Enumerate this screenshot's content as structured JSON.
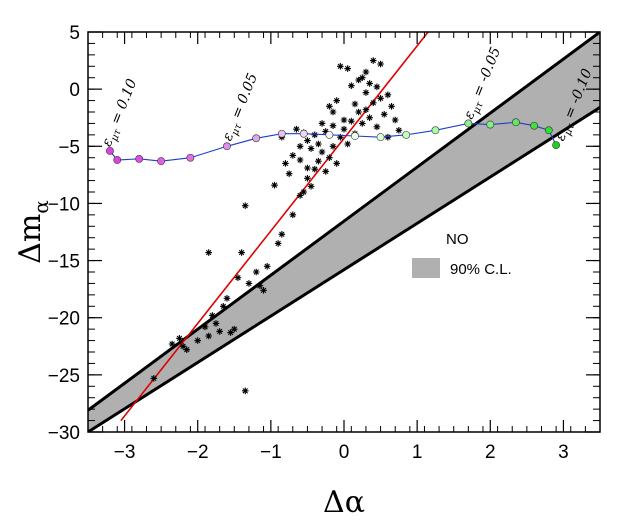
{
  "chart_data": {
    "type": "scatter",
    "xlabel": "Δα",
    "ylabel_main": "Δm",
    "ylabel_sub": "α",
    "xlim": [
      -3.5,
      3.5
    ],
    "ylim": [
      -30,
      5
    ],
    "xticks": [
      -3,
      -2,
      -1,
      0,
      1,
      2,
      3
    ],
    "yticks": [
      5,
      0,
      -5,
      -10,
      -15,
      -20,
      -25,
      -30
    ],
    "xtick_labels": [
      "−3",
      "−2",
      "−1",
      "0",
      "1",
      "2",
      "3"
    ],
    "ytick_labels": [
      "5",
      "0",
      "−5",
      "−10",
      "−15",
      "−20",
      "−25",
      "−30"
    ],
    "band": {
      "name": "90% C.L.",
      "color": "#b0b0b0",
      "lower": [
        [
          -3.5,
          -30
        ],
        [
          3.5,
          -1.6
        ]
      ],
      "upper": [
        [
          -3.5,
          -28.1
        ],
        [
          3.5,
          5
        ]
      ]
    },
    "fit_line": {
      "color": "#e00000",
      "points": [
        [
          -3.05,
          -29
        ],
        [
          1.15,
          5
        ]
      ]
    },
    "scatter_points": [
      [
        -2.6,
        -25.3
      ],
      [
        -2.35,
        -22.3
      ],
      [
        -2.25,
        -21.8
      ],
      [
        -2.2,
        -22.5
      ],
      [
        -2.15,
        -22.8
      ],
      [
        -2.0,
        -22.0
      ],
      [
        -1.9,
        -20.8
      ],
      [
        -1.85,
        -21.6
      ],
      [
        -1.8,
        -19.8
      ],
      [
        -1.75,
        -20.5
      ],
      [
        -1.7,
        -21.2
      ],
      [
        -1.65,
        -19.0
      ],
      [
        -1.6,
        -18.3
      ],
      [
        -1.55,
        -21.3
      ],
      [
        -1.5,
        -21.0
      ],
      [
        -1.45,
        -16.5
      ],
      [
        -1.4,
        -14.3
      ],
      [
        -1.35,
        -26.4
      ],
      [
        -1.3,
        -17.0
      ],
      [
        -1.2,
        -16.0
      ],
      [
        -1.15,
        -17.2
      ],
      [
        -1.1,
        -17.6
      ],
      [
        -1.05,
        -15.5
      ],
      [
        -0.9,
        -13.5
      ],
      [
        -0.85,
        -12.7
      ],
      [
        -1.35,
        -10.2
      ],
      [
        -1.85,
        -14.3
      ],
      [
        -0.7,
        -11.0
      ],
      [
        -0.6,
        -9.3
      ],
      [
        -0.55,
        -9.0
      ],
      [
        -0.5,
        -7.8
      ],
      [
        -0.45,
        -8.5
      ],
      [
        -0.4,
        -7.0
      ],
      [
        -0.35,
        -6.3
      ],
      [
        -0.3,
        -5.5
      ],
      [
        -0.25,
        -7.2
      ],
      [
        -0.2,
        -6.0
      ],
      [
        -0.15,
        -5.0
      ],
      [
        -0.1,
        -6.5
      ],
      [
        -0.05,
        -4.2
      ],
      [
        0.0,
        -3.5
      ],
      [
        0.05,
        -4.8
      ],
      [
        0.1,
        -2.8
      ],
      [
        0.15,
        -3.9
      ],
      [
        0.2,
        -2.0
      ],
      [
        0.25,
        -3.0
      ],
      [
        0.3,
        -1.8
      ],
      [
        0.35,
        -2.5
      ],
      [
        0.4,
        -1.2
      ],
      [
        0.45,
        -3.3
      ],
      [
        0.5,
        -0.8
      ],
      [
        0.55,
        -2.2
      ],
      [
        0.6,
        -4.2
      ],
      [
        0.65,
        -1.5
      ],
      [
        0.7,
        -2.7
      ],
      [
        0.3,
        1.5
      ],
      [
        0.35,
        0.5
      ],
      [
        0.25,
        1.0
      ],
      [
        0.4,
        2.5
      ],
      [
        0.5,
        2.2
      ],
      [
        0.2,
        0.8
      ],
      [
        0.1,
        0.3
      ],
      [
        -0.05,
        2.0
      ],
      [
        0.05,
        1.8
      ],
      [
        -0.1,
        -1.0
      ],
      [
        -0.15,
        -2.0
      ],
      [
        -0.2,
        -1.5
      ],
      [
        -0.3,
        -3.0
      ],
      [
        -0.4,
        -4.0
      ],
      [
        -0.5,
        -4.5
      ],
      [
        -0.6,
        -5.0
      ],
      [
        -0.7,
        -5.8
      ],
      [
        -0.8,
        -6.5
      ],
      [
        -0.65,
        -3.5
      ],
      [
        -0.55,
        -3.8
      ],
      [
        -0.45,
        -5.2
      ],
      [
        -0.35,
        -4.8
      ],
      [
        -0.25,
        -3.7
      ],
      [
        -0.15,
        -3.2
      ],
      [
        0.0,
        -2.7
      ],
      [
        0.15,
        -1.3
      ],
      [
        0.3,
        -0.3
      ],
      [
        0.45,
        0.2
      ],
      [
        0.6,
        -0.5
      ],
      [
        0.75,
        -3.6
      ],
      [
        -0.6,
        -6.2
      ],
      [
        -0.5,
        -6.9
      ],
      [
        -0.75,
        -7.4
      ],
      [
        -0.95,
        -8.4
      ],
      [
        -0.85,
        -4.2
      ]
    ],
    "curve_points": [
      {
        "x": -3.2,
        "y": -5.4,
        "color": "#e040e0"
      },
      {
        "x": -3.1,
        "y": -6.2,
        "color": "#e040e0"
      },
      {
        "x": -2.8,
        "y": -6.1,
        "color": "#e050e0"
      },
      {
        "x": -2.5,
        "y": -6.3,
        "color": "#e060e0"
      },
      {
        "x": -2.1,
        "y": -6.0,
        "color": "#e070e0"
      },
      {
        "x": -1.6,
        "y": -5.0,
        "color": "#e090e8"
      },
      {
        "x": -1.2,
        "y": -4.3,
        "color": "#e0a8ec"
      },
      {
        "x": -0.85,
        "y": -3.9,
        "color": "#e8c0f0"
      },
      {
        "x": -0.55,
        "y": -3.9,
        "color": "#f0d8f4"
      },
      {
        "x": -0.2,
        "y": -4.0,
        "color": "#f8f0f8"
      },
      {
        "x": 0.15,
        "y": -4.1,
        "color": "#f0fff0"
      },
      {
        "x": 0.5,
        "y": -4.2,
        "color": "#d8ffd8"
      },
      {
        "x": 0.85,
        "y": -4.0,
        "color": "#c0ffc0"
      },
      {
        "x": 1.25,
        "y": -3.6,
        "color": "#a8ffa8"
      },
      {
        "x": 1.7,
        "y": -3.0,
        "color": "#90f090"
      },
      {
        "x": 2.0,
        "y": -3.1,
        "color": "#80f080"
      },
      {
        "x": 2.35,
        "y": -2.9,
        "color": "#60e860"
      },
      {
        "x": 2.6,
        "y": -3.2,
        "color": "#40e040"
      },
      {
        "x": 2.8,
        "y": -3.6,
        "color": "#30e030"
      },
      {
        "x": 2.9,
        "y": -4.9,
        "color": "#20d020"
      }
    ],
    "curve_color": "#1e3cd0",
    "annotations": [
      {
        "text": "ε",
        "sub": "μτ",
        "rest": " = 0.10",
        "x": -3.2,
        "y": -5.1,
        "angle": -68
      },
      {
        "text": "ε",
        "sub": "μτ",
        "rest": " = 0.05",
        "x": -1.55,
        "y": -4.6,
        "angle": -68
      },
      {
        "text": "ε",
        "sub": "μτ",
        "rest": " = -0.05",
        "x": 1.75,
        "y": -2.7,
        "angle": -68
      },
      {
        "text": "ε",
        "sub": "μτ",
        "rest": " = -0.10",
        "x": 3.0,
        "y": -4.6,
        "angle": -68
      }
    ],
    "legend": {
      "title": "NO",
      "entries": [
        {
          "label": "90% C.L.",
          "color": "#b0b0b0"
        }
      ],
      "position": "right"
    }
  }
}
